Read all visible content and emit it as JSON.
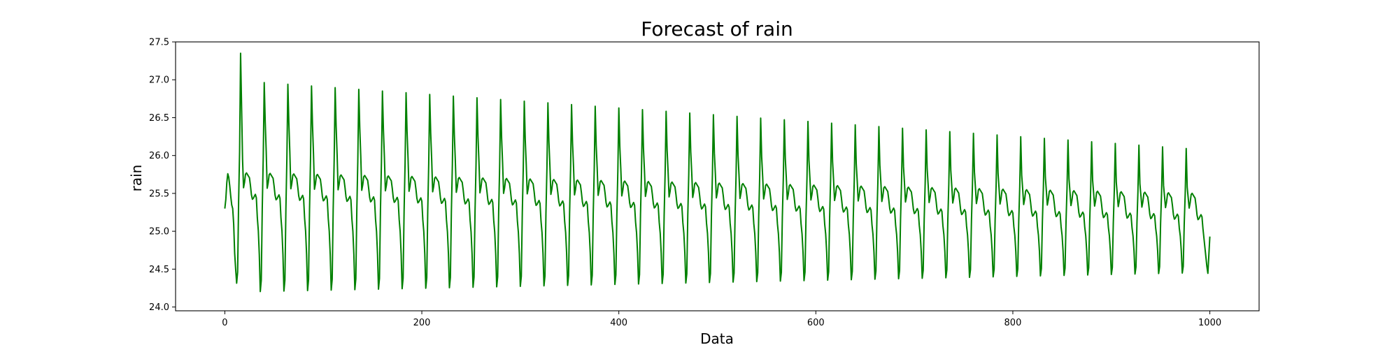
{
  "chart_data": {
    "type": "line",
    "title": "Forecast of rain",
    "xlabel": "Data",
    "ylabel": "rain",
    "xlim": [
      -50,
      1050
    ],
    "ylim": [
      23.95,
      27.5
    ],
    "xticks": [
      0,
      200,
      400,
      600,
      800,
      1000
    ],
    "yticks": [
      24.0,
      24.5,
      25.0,
      25.5,
      26.0,
      26.5,
      27.0,
      27.5
    ],
    "xtick_labels": [
      "0",
      "200",
      "400",
      "600",
      "800",
      "1000"
    ],
    "ytick_labels": [
      "24.0",
      "24.5",
      "25.0",
      "25.5",
      "26.0",
      "26.5",
      "27.0",
      "27.5"
    ],
    "grid": false,
    "series": [
      {
        "color": "#008000",
        "x_start": 0,
        "x_end": 1000,
        "n_points": 1001,
        "period": 24,
        "first_value": 25.3,
        "last_value": 24.93,
        "first_peak": {
          "x": 16,
          "y": 27.35
        },
        "peak_max": {
          "start": 27.0,
          "end": 26.07
        },
        "trough_min": {
          "start": 24.1,
          "end": 24.4
        },
        "shoulder_peak": {
          "start": 25.78,
          "end": 25.5
        },
        "post_peak_dip": {
          "start": 25.58,
          "end": 25.3
        }
      }
    ]
  }
}
